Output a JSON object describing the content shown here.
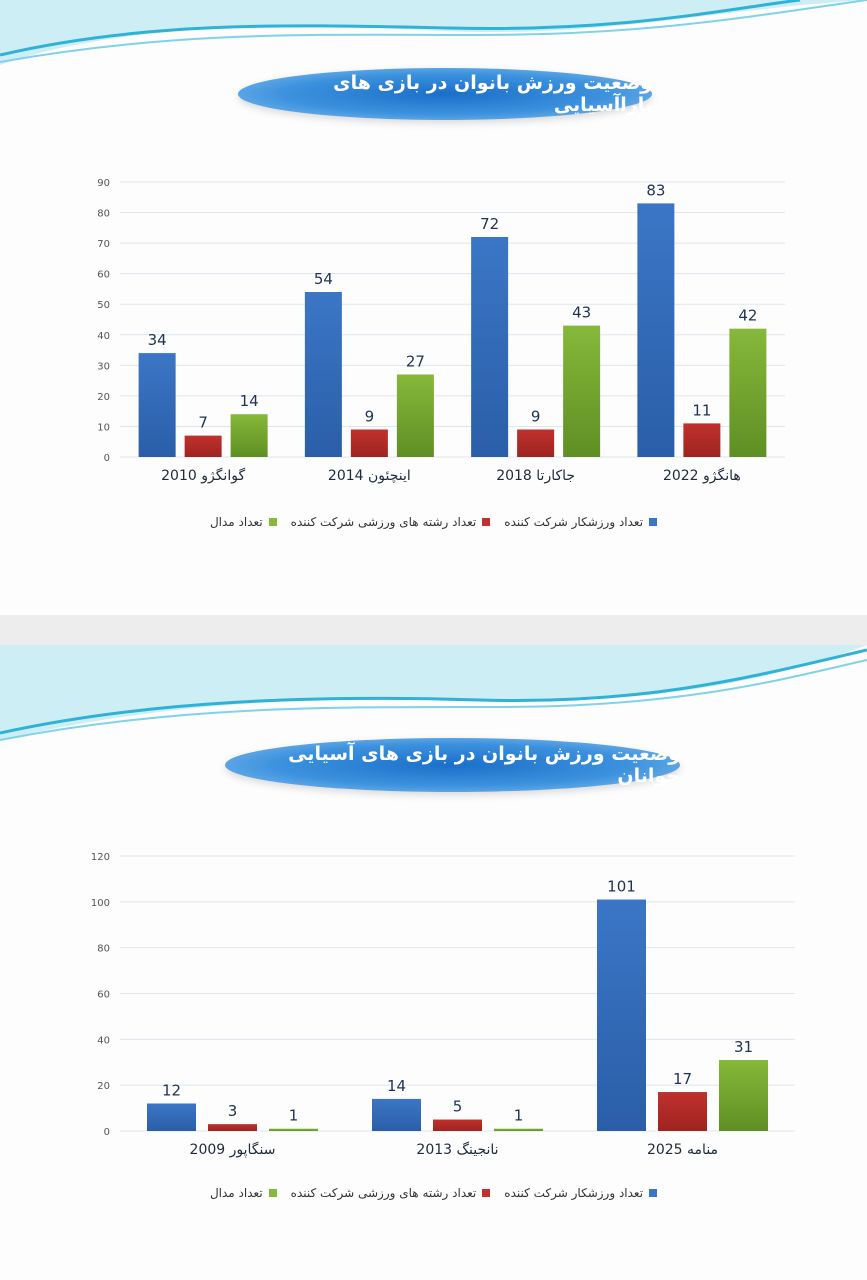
{
  "colors": {
    "athletes": "#3b76c6",
    "sports": "#c0312d",
    "medals": "#86b83a"
  },
  "legend": {
    "athletes": "تعداد ورزشکار شرکت کننده",
    "sports": "تعداد رشته های ورزشی شرکت کننده",
    "medals": "تعداد مدال"
  },
  "chart_data": [
    {
      "type": "bar",
      "title": "وضعیت ورزش بانوان در بازی های پاراآسیایی",
      "categories": [
        "گوانگژو 2010",
        "اینچئون 2014",
        "جاکارتا 2018",
        "هانگژو 2022"
      ],
      "series": [
        {
          "name": "تعداد ورزشکار شرکت کننده",
          "values": [
            34,
            54,
            72,
            83
          ]
        },
        {
          "name": "تعداد رشته های ورزشی شرکت کننده",
          "values": [
            7,
            9,
            9,
            11
          ]
        },
        {
          "name": "تعداد مدال",
          "values": [
            14,
            27,
            43,
            42
          ]
        }
      ],
      "ylim": [
        0,
        90
      ],
      "yticks": [
        0,
        10,
        20,
        30,
        40,
        50,
        60,
        70,
        80,
        90
      ],
      "grid": true,
      "legend_position": "bottom"
    },
    {
      "type": "bar",
      "title": "وضعیت ورزش بانوان در بازی های آسیایی جوانان",
      "categories": [
        "سنگاپور 2009",
        "نانجینگ 2013",
        "منامه 2025"
      ],
      "series": [
        {
          "name": "تعداد ورزشکار شرکت کننده",
          "values": [
            12,
            14,
            101
          ]
        },
        {
          "name": "تعداد رشته های ورزشی شرکت کننده",
          "values": [
            3,
            5,
            17
          ]
        },
        {
          "name": "تعداد مدال",
          "values": [
            1,
            1,
            31
          ]
        }
      ],
      "ylim": [
        0,
        120
      ],
      "yticks": [
        0,
        20,
        40,
        60,
        80,
        100,
        120
      ],
      "grid": true,
      "legend_position": "bottom"
    }
  ]
}
